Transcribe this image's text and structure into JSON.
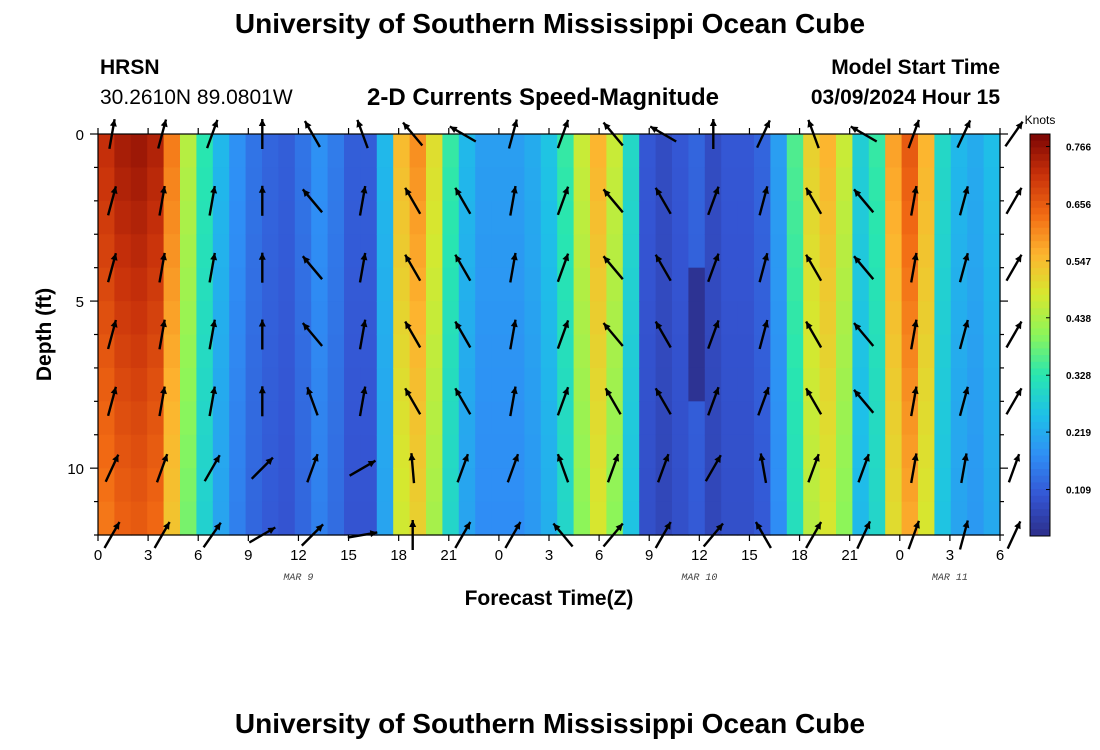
{
  "page": {
    "title": "University of Southern Mississippi Ocean Cube",
    "station_code": "HRSN",
    "station_coords": "30.2610N  89.0801W",
    "product": "2-D Currents Speed-Magnitude",
    "model_start_label": "Model Start Time",
    "model_start_value": "03/09/2024 Hour 15",
    "bottom_title": "University of Southern Mississippi Ocean Cube"
  },
  "chart_data": {
    "type": "heatmap",
    "title": "2-D Currents Speed-Magnitude",
    "xlabel": "Forecast Time(Z)",
    "ylabel": "Depth (ft)",
    "x_tick_labels": [
      "0",
      "3",
      "6",
      "9",
      "12",
      "15",
      "18",
      "21",
      "0",
      "3",
      "6",
      "9",
      "12",
      "15",
      "18",
      "21",
      "0",
      "3",
      "6"
    ],
    "x_range_hours": [
      0,
      54
    ],
    "date_labels": [
      {
        "text": "MAR 9",
        "hour": 12
      },
      {
        "text": "MAR 10",
        "hour": 36
      },
      {
        "text": "MAR 11",
        "hour": 51
      }
    ],
    "y_ticks": [
      0,
      5,
      10
    ],
    "y_range_ft": [
      0,
      12
    ],
    "y_inverted": true,
    "colorbar": {
      "unit": "Knots",
      "tick_labels": [
        "0.766",
        "0.656",
        "0.547",
        "0.438",
        "0.328",
        "0.219",
        "0.109"
      ],
      "range": [
        0.02,
        0.79
      ],
      "colors": [
        "#2c2e8a",
        "#3455d3",
        "#2f8ef5",
        "#1ec0e8",
        "#28e6b0",
        "#8cf55a",
        "#d6e82f",
        "#fdb42f",
        "#f26a13",
        "#c7300a",
        "#7a0403"
      ]
    },
    "column_hours": [
      0,
      1,
      2,
      3,
      4,
      5,
      6,
      7,
      8,
      9,
      10,
      11,
      12,
      13,
      14,
      15,
      16,
      17,
      18,
      19,
      20,
      21,
      22,
      23,
      24,
      25,
      26,
      27,
      28,
      29,
      30,
      31,
      32,
      33,
      34,
      35,
      36,
      37,
      38,
      39,
      40,
      41,
      42,
      43,
      44,
      45,
      46,
      47,
      48,
      49,
      50,
      51,
      52,
      53,
      54
    ],
    "surface_speed_knots": [
      0.72,
      0.75,
      0.76,
      0.74,
      0.62,
      0.45,
      0.33,
      0.24,
      0.18,
      0.14,
      0.12,
      0.11,
      0.14,
      0.18,
      0.15,
      0.11,
      0.11,
      0.24,
      0.55,
      0.6,
      0.5,
      0.34,
      0.24,
      0.2,
      0.2,
      0.2,
      0.22,
      0.26,
      0.34,
      0.47,
      0.56,
      0.47,
      0.3,
      0.1,
      0.08,
      0.1,
      0.12,
      0.08,
      0.1,
      0.1,
      0.12,
      0.2,
      0.36,
      0.52,
      0.56,
      0.47,
      0.28,
      0.34,
      0.58,
      0.66,
      0.56,
      0.3,
      0.24,
      0.22,
      0.25
    ],
    "depth_factor_points": [
      [
        0,
        1.0
      ],
      [
        8,
        0.9
      ],
      [
        12,
        0.86
      ]
    ],
    "min_speed_spot": {
      "hour": 36,
      "depth_from": 4.5,
      "depth_to": 7.5,
      "speed": 0.03
    },
    "vector_depths_ft": [
      0,
      2,
      4,
      6,
      8,
      10,
      12
    ],
    "vector_directions_deg": [
      [
        10,
        15,
        20,
        0,
        330,
        340,
        320,
        300,
        15,
        20,
        320,
        300,
        0,
        25,
        340,
        300,
        20,
        25,
        35
      ],
      [
        15,
        10,
        10,
        0,
        320,
        10,
        330,
        330,
        10,
        20,
        320,
        330,
        20,
        15,
        330,
        320,
        10,
        15,
        30
      ],
      [
        15,
        10,
        10,
        0,
        320,
        10,
        330,
        330,
        10,
        20,
        320,
        330,
        20,
        15,
        330,
        320,
        10,
        15,
        30
      ],
      [
        15,
        10,
        10,
        0,
        320,
        10,
        330,
        330,
        10,
        20,
        320,
        330,
        20,
        15,
        330,
        320,
        10,
        15,
        30
      ],
      [
        15,
        10,
        10,
        0,
        340,
        10,
        330,
        330,
        10,
        20,
        330,
        330,
        20,
        20,
        330,
        320,
        10,
        15,
        30
      ],
      [
        25,
        20,
        30,
        45,
        20,
        60,
        355,
        20,
        20,
        340,
        20,
        20,
        30,
        350,
        20,
        20,
        10,
        10,
        20
      ],
      [
        30,
        30,
        35,
        60,
        45,
        80,
        0,
        30,
        30,
        320,
        40,
        30,
        40,
        330,
        30,
        25,
        20,
        15,
        25
      ]
    ]
  }
}
